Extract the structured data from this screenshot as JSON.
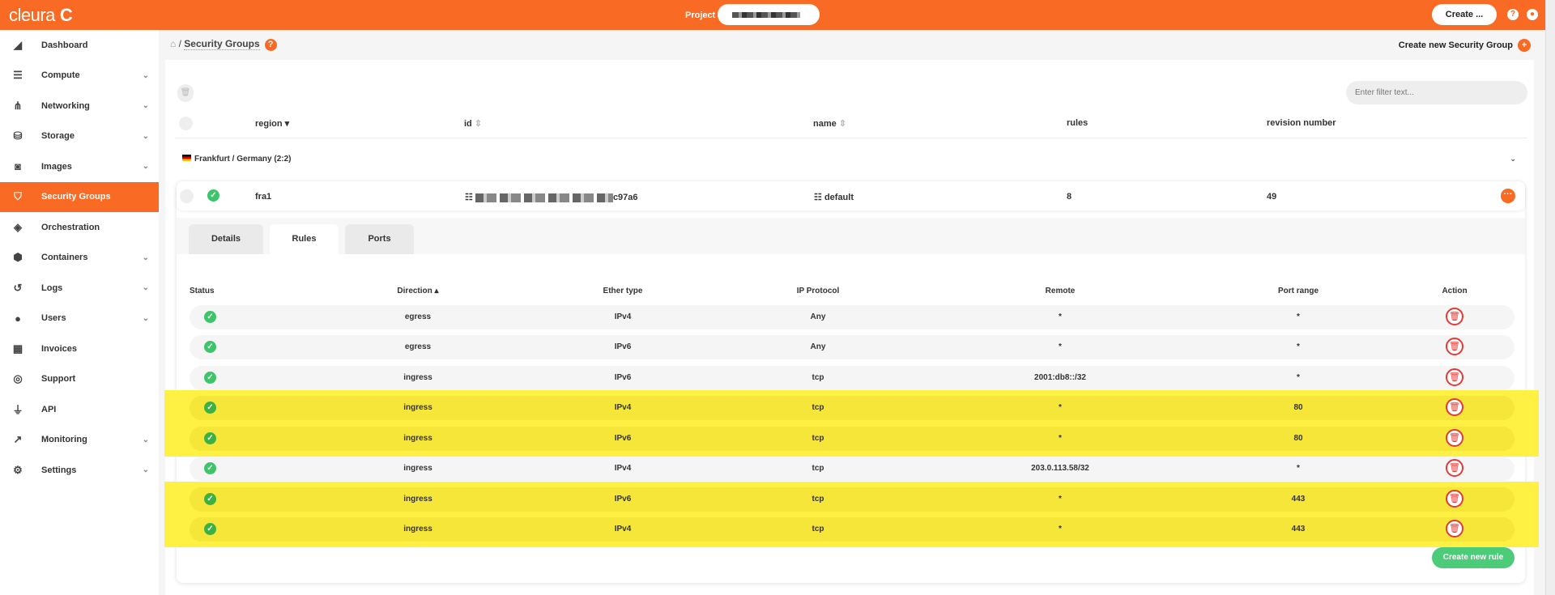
{
  "header": {
    "logo": "cleura",
    "project_label": "Project",
    "create_label": "Create ...",
    "brand_color": "#f96b24"
  },
  "sidebar": {
    "items": [
      {
        "label": "Dashboard",
        "icon": "chart-area-icon",
        "chevron": false
      },
      {
        "label": "Compute",
        "icon": "server-icon",
        "chevron": true
      },
      {
        "label": "Networking",
        "icon": "sitemap-icon",
        "chevron": true
      },
      {
        "label": "Storage",
        "icon": "database-icon",
        "chevron": true
      },
      {
        "label": "Images",
        "icon": "camera-icon",
        "chevron": true
      },
      {
        "label": "Security Groups",
        "icon": "shield-icon",
        "chevron": false,
        "active": true
      },
      {
        "label": "Orchestration",
        "icon": "orchestration-icon",
        "chevron": false
      },
      {
        "label": "Containers",
        "icon": "cube-icon",
        "chevron": true
      },
      {
        "label": "Logs",
        "icon": "history-icon",
        "chevron": true
      },
      {
        "label": "Users",
        "icon": "user-icon",
        "chevron": true
      },
      {
        "label": "Invoices",
        "icon": "calculator-icon",
        "chevron": false
      },
      {
        "label": "Support",
        "icon": "life-ring-icon",
        "chevron": false
      },
      {
        "label": "API",
        "icon": "plug-icon",
        "chevron": false
      },
      {
        "label": "Monitoring",
        "icon": "chart-line-icon",
        "chevron": true
      },
      {
        "label": "Settings",
        "icon": "gear-icon",
        "chevron": true
      }
    ]
  },
  "breadcrumb": {
    "current": "Security Groups"
  },
  "create_sg_label": "Create new Security Group",
  "filter": {
    "placeholder": "Enter filter text..."
  },
  "columns": {
    "region": "region",
    "id": "id",
    "name": "name",
    "rules": "rules",
    "revision": "revision number"
  },
  "region_group": "Frankfurt / Germany (2:2)",
  "group": {
    "region": "fra1",
    "id_suffix": "c97a6",
    "name": "default",
    "rules": "8",
    "revision": "49"
  },
  "tabs": [
    "Details",
    "Rules",
    "Ports"
  ],
  "selected_tab": "Rules",
  "rules_headers": [
    "Status",
    "Direction",
    "Ether type",
    "IP Protocol",
    "Remote",
    "Port range",
    "Action"
  ],
  "rules": [
    {
      "direction": "egress",
      "ether": "IPv4",
      "protocol": "Any",
      "remote": "*",
      "port": "*",
      "highlighted": false
    },
    {
      "direction": "egress",
      "ether": "IPv6",
      "protocol": "Any",
      "remote": "*",
      "port": "*",
      "highlighted": false
    },
    {
      "direction": "ingress",
      "ether": "IPv6",
      "protocol": "tcp",
      "remote": "2001:db8::/32",
      "port": "*",
      "highlighted": false
    },
    {
      "direction": "ingress",
      "ether": "IPv4",
      "protocol": "tcp",
      "remote": "*",
      "port": "80",
      "highlighted": true
    },
    {
      "direction": "ingress",
      "ether": "IPv6",
      "protocol": "tcp",
      "remote": "*",
      "port": "80",
      "highlighted": true
    },
    {
      "direction": "ingress",
      "ether": "IPv4",
      "protocol": "tcp",
      "remote": "203.0.113.58/32",
      "port": "*",
      "highlighted": false
    },
    {
      "direction": "ingress",
      "ether": "IPv6",
      "protocol": "tcp",
      "remote": "*",
      "port": "443",
      "highlighted": true
    },
    {
      "direction": "ingress",
      "ether": "IPv4",
      "protocol": "tcp",
      "remote": "*",
      "port": "443",
      "highlighted": true
    }
  ],
  "create_rule_label": "Create new rule"
}
